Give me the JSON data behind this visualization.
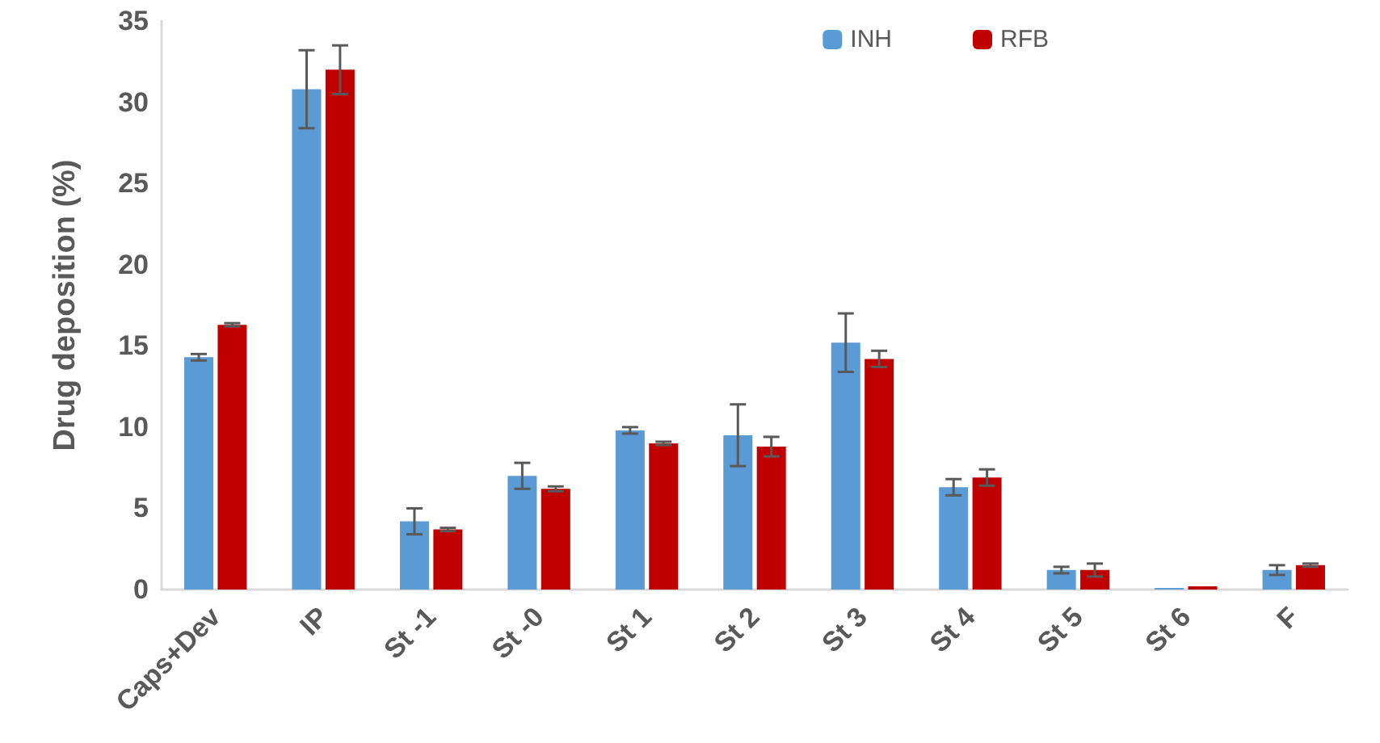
{
  "chart_data": {
    "type": "bar",
    "ylabel": "Drug deposition (%)",
    "categories": [
      "Caps+Dev",
      "IP",
      "St -1",
      "St -0",
      "St 1",
      "St 2",
      "St 3",
      "St 4",
      "St 5",
      "St 6",
      "F"
    ],
    "series": [
      {
        "name": "INH",
        "color": "#5b9bd5",
        "values": [
          14.3,
          30.8,
          4.2,
          7.0,
          9.8,
          9.5,
          15.2,
          6.3,
          1.2,
          0.1,
          1.2
        ],
        "errors": [
          0.2,
          2.4,
          0.8,
          0.8,
          0.2,
          1.9,
          1.8,
          0.5,
          0.2,
          null,
          0.3
        ]
      },
      {
        "name": "RFB",
        "color": "#c00000",
        "values": [
          16.3,
          32.0,
          3.7,
          6.2,
          9.0,
          8.8,
          14.2,
          6.9,
          1.2,
          0.2,
          1.5
        ],
        "errors": [
          0.1,
          1.5,
          0.1,
          0.15,
          0.1,
          0.6,
          0.5,
          0.5,
          0.4,
          null,
          0.1
        ]
      }
    ],
    "ylim": [
      0,
      35
    ],
    "yticks": [
      0,
      5,
      10,
      15,
      20,
      25,
      30,
      35
    ],
    "grid": false,
    "legend": "top right"
  }
}
